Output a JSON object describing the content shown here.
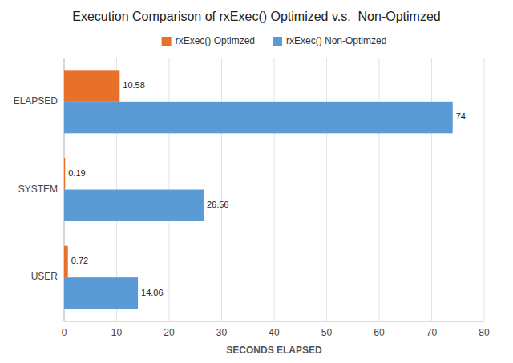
{
  "chart_data": {
    "type": "bar",
    "orientation": "horizontal",
    "title": "Execution Comparison of rxExec() Optimized v.s.  Non-Optimzed",
    "xlabel": "SECONDS ELAPSED",
    "categories": [
      "ELAPSED",
      "SYSTEM",
      "USER"
    ],
    "series": [
      {
        "name": "rxExec() Optimzed",
        "color": "#E8702A",
        "values": [
          10.58,
          0.19,
          0.72
        ]
      },
      {
        "name": "rxExec() Non-Optimzed",
        "color": "#5B9BD5",
        "values": [
          74,
          26.56,
          14.06
        ]
      }
    ],
    "xlim": [
      0,
      80
    ],
    "xticks": [
      0,
      10,
      20,
      30,
      40,
      50,
      60,
      70,
      80
    ],
    "grid": true,
    "legend": "top",
    "data_labels": true
  }
}
